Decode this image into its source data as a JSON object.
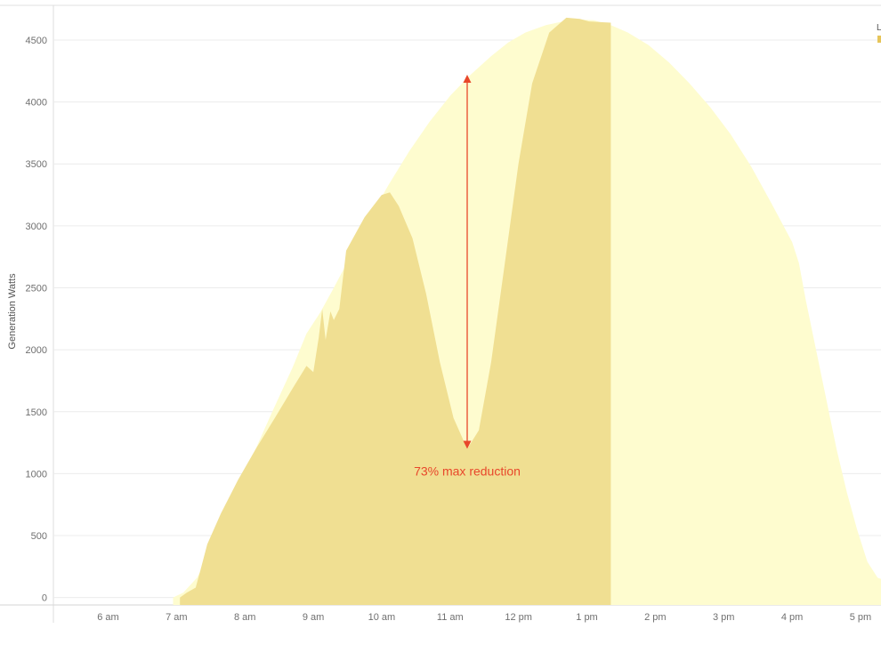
{
  "chart_data": {
    "type": "area",
    "ylabel": "Generation Watts",
    "xlabel": "",
    "x_unit": "hour of day (24h)",
    "xlim": [
      5.2,
      17.3
    ],
    "ylim": [
      -60,
      4780
    ],
    "y_ticks": [
      0,
      500,
      1000,
      1500,
      2000,
      2500,
      3000,
      3500,
      4000,
      4500
    ],
    "x_ticks": [
      {
        "value": 6,
        "label": "6 am"
      },
      {
        "value": 7,
        "label": "7 am"
      },
      {
        "value": 8,
        "label": "8 am"
      },
      {
        "value": 9,
        "label": "9 am"
      },
      {
        "value": 10,
        "label": "10 am"
      },
      {
        "value": 11,
        "label": "11 am"
      },
      {
        "value": 12,
        "label": "12 pm"
      },
      {
        "value": 13,
        "label": "1 pm"
      },
      {
        "value": 14,
        "label": "2 pm"
      },
      {
        "value": 15,
        "label": "3 pm"
      },
      {
        "value": 16,
        "label": "4 pm"
      },
      {
        "value": 17,
        "label": "5 pm"
      }
    ],
    "grid": {
      "horizontal": true,
      "vertical": false
    },
    "legend_hint_text": "L",
    "series": [
      {
        "color": "#fefccf",
        "points": [
          [
            6.95,
            0
          ],
          [
            7.1,
            40
          ],
          [
            7.3,
            160
          ],
          [
            7.55,
            420
          ],
          [
            7.8,
            750
          ],
          [
            8.1,
            1130
          ],
          [
            8.4,
            1500
          ],
          [
            8.7,
            1860
          ],
          [
            8.9,
            2130
          ],
          [
            9.1,
            2300
          ],
          [
            9.3,
            2500
          ],
          [
            9.55,
            2760
          ],
          [
            9.8,
            3040
          ],
          [
            10.1,
            3330
          ],
          [
            10.4,
            3600
          ],
          [
            10.7,
            3840
          ],
          [
            11.0,
            4050
          ],
          [
            11.3,
            4220
          ],
          [
            11.6,
            4370
          ],
          [
            11.85,
            4480
          ],
          [
            12.1,
            4560
          ],
          [
            12.4,
            4620
          ],
          [
            12.65,
            4650
          ],
          [
            12.9,
            4665
          ],
          [
            13.1,
            4660
          ],
          [
            13.35,
            4620
          ],
          [
            13.6,
            4560
          ],
          [
            13.9,
            4460
          ],
          [
            14.2,
            4320
          ],
          [
            14.5,
            4150
          ],
          [
            14.8,
            3960
          ],
          [
            15.1,
            3740
          ],
          [
            15.4,
            3480
          ],
          [
            15.7,
            3180
          ],
          [
            16.0,
            2870
          ],
          [
            16.1,
            2700
          ],
          [
            16.2,
            2400
          ],
          [
            16.35,
            2000
          ],
          [
            16.5,
            1600
          ],
          [
            16.65,
            1200
          ],
          [
            16.8,
            850
          ],
          [
            16.95,
            550
          ],
          [
            17.1,
            290
          ],
          [
            17.25,
            160
          ],
          [
            17.3,
            150
          ]
        ]
      },
      {
        "color": "#f0df92",
        "points": [
          [
            7.05,
            0
          ],
          [
            7.15,
            40
          ],
          [
            7.28,
            80
          ],
          [
            7.35,
            220
          ],
          [
            7.45,
            430
          ],
          [
            7.65,
            680
          ],
          [
            7.9,
            950
          ],
          [
            8.15,
            1190
          ],
          [
            8.45,
            1460
          ],
          [
            8.7,
            1690
          ],
          [
            8.9,
            1870
          ],
          [
            9.0,
            1820
          ],
          [
            9.08,
            2100
          ],
          [
            9.13,
            2330
          ],
          [
            9.18,
            2080
          ],
          [
            9.25,
            2310
          ],
          [
            9.3,
            2240
          ],
          [
            9.38,
            2330
          ],
          [
            9.48,
            2800
          ],
          [
            9.75,
            3070
          ],
          [
            10.0,
            3250
          ],
          [
            10.12,
            3270
          ],
          [
            10.25,
            3160
          ],
          [
            10.45,
            2900
          ],
          [
            10.65,
            2450
          ],
          [
            10.85,
            1900
          ],
          [
            11.05,
            1450
          ],
          [
            11.25,
            1200
          ],
          [
            11.42,
            1350
          ],
          [
            11.6,
            1900
          ],
          [
            11.8,
            2700
          ],
          [
            12.0,
            3500
          ],
          [
            12.2,
            4150
          ],
          [
            12.45,
            4560
          ],
          [
            12.7,
            4680
          ],
          [
            12.9,
            4670
          ],
          [
            13.03,
            4650
          ],
          [
            13.35,
            4640
          ],
          [
            13.35,
            -60
          ],
          [
            7.05,
            -60
          ]
        ]
      }
    ],
    "annotations": [
      {
        "type": "range_arrow",
        "x": 11.25,
        "y_from": 4220,
        "y_to": 1200,
        "color": "#e8472b"
      },
      {
        "type": "label",
        "text": "73% max reduction",
        "x": 11.25,
        "y": 1020,
        "color": "#e8472b"
      }
    ],
    "colors": {
      "axis_text": "#6f6f6f",
      "grid": "#ececec",
      "frame": "#d6d6d6",
      "legend_swatch": "#e6c55a"
    }
  }
}
